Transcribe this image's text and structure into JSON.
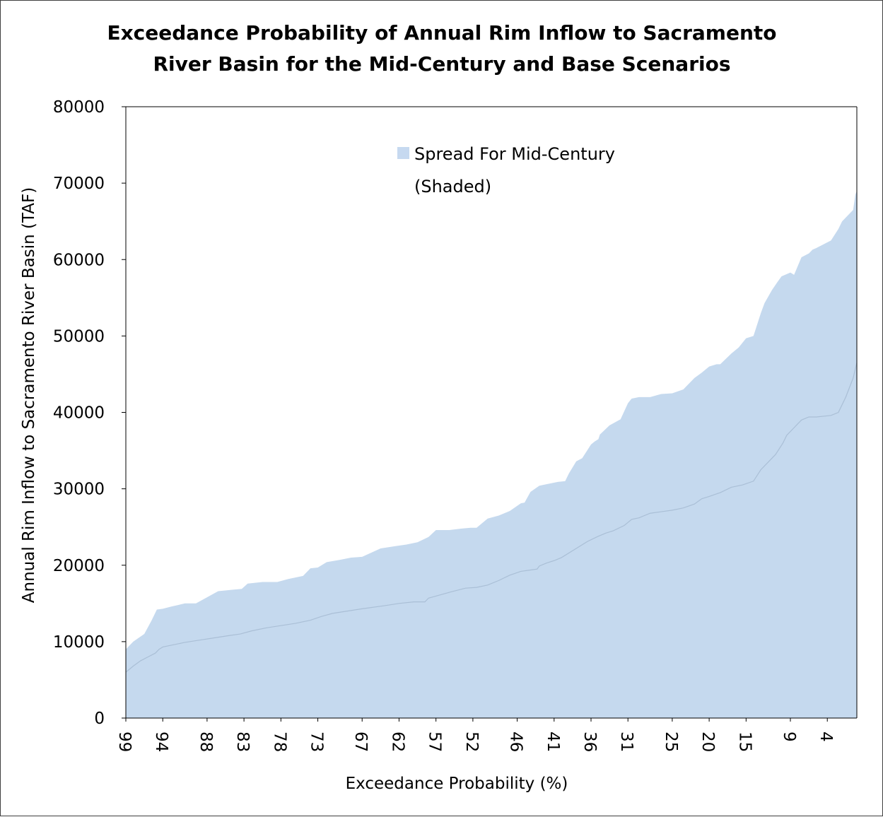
{
  "chart_data": {
    "type": "area",
    "title": "Exceedance Probability of Annual Rim Inflow to Sacramento River Basin for the Mid-Century and Base Scenarios",
    "title_lines": [
      "Exceedance Probability of Annual Rim Inflow to Sacramento",
      "River Basin for the Mid-Century and Base Scenarios"
    ],
    "xlabel": "Exceedance Probability (%)",
    "ylabel": "Annual Rim Inflow to Sacramento River Basin (TAF)",
    "x_reversed": true,
    "xlim": [
      99,
      0
    ],
    "ylim": [
      0,
      80000
    ],
    "y_ticks": [
      0,
      10000,
      20000,
      30000,
      40000,
      50000,
      60000,
      70000,
      80000
    ],
    "x_ticks": [
      "99",
      "94",
      "88",
      "83",
      "78",
      "73",
      "67",
      "62",
      "57",
      "52",
      "46",
      "41",
      "36",
      "31",
      "25",
      "20",
      "15",
      "9",
      "4"
    ],
    "grid": false,
    "legend": {
      "position": "top-center",
      "label_lines": [
        "Spread For Mid-Century",
        "(Shaded)"
      ],
      "color": "#c6d9f0"
    },
    "fill_color": "#c5d9ee",
    "series": [
      {
        "name": "Spread For Mid-Century (Shaded)",
        "role": "upper",
        "x": [
          99,
          98,
          96.5,
          95.5,
          94.8,
          94,
          92.8,
          91,
          89.5,
          88,
          86.5,
          84.5,
          83.3,
          82.5,
          80.5,
          78.5,
          77,
          75,
          74,
          73,
          71.8,
          70,
          68.5,
          67,
          64.5,
          62.5,
          61,
          59.5,
          58,
          57,
          55.2,
          53.5,
          52.3,
          51.5,
          50,
          48.5,
          47,
          45.5,
          45,
          44.2,
          43,
          41.5,
          40.5,
          39.5,
          39,
          38,
          37.2,
          36,
          35.5,
          35,
          34.8,
          33.5,
          32,
          31,
          30.5,
          29.5,
          28,
          26.5,
          25,
          23.5,
          22,
          21,
          20,
          19,
          18.5,
          17,
          16,
          15,
          14,
          13,
          12.5,
          11.5,
          10.8,
          10.2,
          9,
          8.5,
          7.5,
          6.5,
          6,
          5.5,
          4.5,
          3.5,
          2.5,
          2,
          0.5,
          0.2,
          0
        ],
        "y": [
          9000,
          10000,
          11000,
          12800,
          14200,
          14300,
          14600,
          15000,
          15000,
          15800,
          16600,
          16800,
          16900,
          17600,
          17800,
          17800,
          18200,
          18600,
          19600,
          19700,
          20400,
          20700,
          21000,
          21100,
          22200,
          22500,
          22700,
          23000,
          23700,
          24600,
          24600,
          24800,
          24900,
          24900,
          26100,
          26500,
          27100,
          28100,
          28200,
          29600,
          30400,
          30700,
          30900,
          31000,
          32000,
          33600,
          34000,
          35800,
          36200,
          36500,
          37100,
          38300,
          39100,
          41200,
          41800,
          42000,
          42000,
          42400,
          42500,
          43000,
          44500,
          45200,
          46000,
          46300,
          46300,
          47700,
          48500,
          49700,
          50000,
          53000,
          54300,
          56000,
          57000,
          57800,
          58300,
          58000,
          60300,
          60800,
          61300,
          61500,
          62000,
          62500,
          64000,
          65000,
          66500,
          68500,
          69000
        ]
      },
      {
        "name": "",
        "role": "lower",
        "x": [
          99,
          98,
          97,
          96,
          95,
          94.5,
          94,
          92.5,
          91,
          89,
          87,
          85,
          83.5,
          82,
          80,
          78,
          76,
          74,
          72.5,
          71,
          69,
          67,
          64,
          62,
          60,
          58.5,
          58,
          56.5,
          55,
          53,
          51.5,
          50,
          48.5,
          47,
          45.5,
          44,
          43.3,
          43,
          42,
          41,
          40,
          38,
          36.5,
          35,
          34,
          33,
          31.5,
          30.5,
          29.5,
          28,
          26.5,
          25,
          23.5,
          22,
          21,
          20,
          18.5,
          17,
          15.5,
          14,
          13,
          12,
          11,
          10,
          9.5,
          8.5,
          7.5,
          6.5,
          5.5,
          4.5,
          3.5,
          2.5,
          1.5,
          0.5,
          0
        ],
        "y": [
          6000,
          6800,
          7500,
          8000,
          8500,
          9000,
          9300,
          9600,
          9900,
          10200,
          10500,
          10800,
          11000,
          11400,
          11800,
          12100,
          12400,
          12800,
          13300,
          13700,
          14000,
          14300,
          14700,
          15000,
          15200,
          15200,
          15700,
          16100,
          16500,
          17000,
          17100,
          17400,
          18000,
          18700,
          19200,
          19400,
          19500,
          19900,
          20300,
          20600,
          21000,
          22200,
          23100,
          23800,
          24200,
          24500,
          25200,
          26000,
          26200,
          26800,
          27000,
          27200,
          27500,
          28000,
          28700,
          29000,
          29500,
          30200,
          30500,
          31000,
          32500,
          33500,
          34500,
          36000,
          37000,
          38000,
          39000,
          39400,
          39400,
          39500,
          39600,
          40000,
          42000,
          44500,
          46500
        ]
      }
    ]
  }
}
